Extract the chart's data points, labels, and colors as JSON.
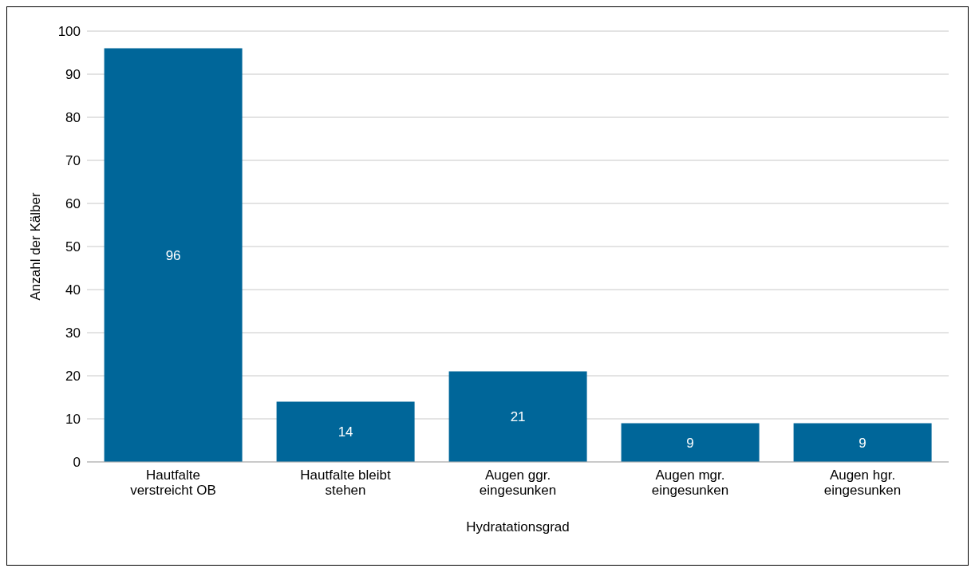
{
  "chart_data": {
    "type": "bar",
    "xlabel": "Hydratationsgrad",
    "ylabel": "Anzahl der Kälber",
    "categories": [
      "Hautfalte verstreicht OB",
      "Hautfalte bleibt stehen",
      "Augen ggr. eingesunken",
      "Augen mgr. eingesunken",
      "Augen hgr. eingesunken"
    ],
    "values": [
      96,
      14,
      21,
      9,
      9
    ],
    "color": "#006699",
    "ylim": [
      0,
      100
    ],
    "yticks": [
      0,
      10,
      20,
      30,
      40,
      50,
      60,
      70,
      80,
      90,
      100
    ],
    "grid": "y",
    "data_labels": true
  }
}
